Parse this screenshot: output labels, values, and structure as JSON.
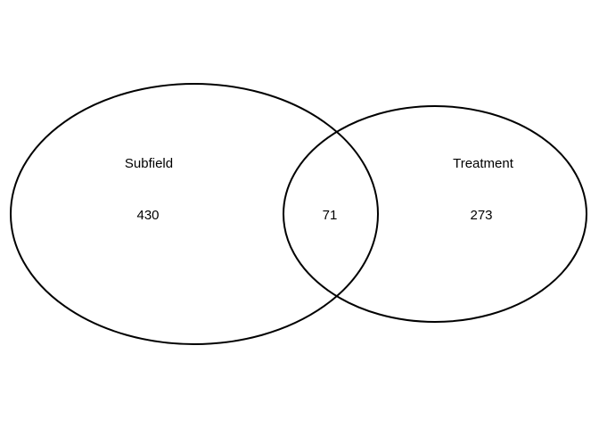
{
  "venn": {
    "sets": [
      {
        "label": "Subfield",
        "only_count": "430"
      },
      {
        "label": "Treatment",
        "only_count": "273"
      }
    ],
    "overlap_count": "71",
    "outline_color": "#000000",
    "background": "#ffffff"
  }
}
